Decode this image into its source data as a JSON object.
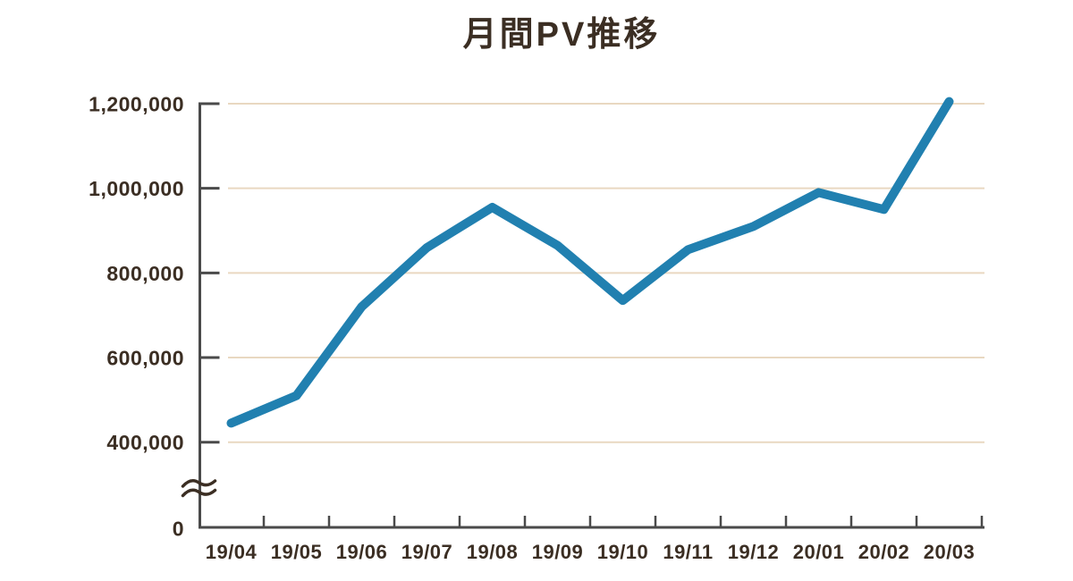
{
  "page": {
    "background": "#ffffff"
  },
  "chart_data": {
    "type": "line",
    "title": "月間PV推移",
    "categories": [
      "19/04",
      "19/05",
      "19/06",
      "19/07",
      "19/08",
      "19/09",
      "19/10",
      "19/11",
      "19/12",
      "20/01",
      "20/02",
      "20/03"
    ],
    "values": [
      445000,
      510000,
      720000,
      860000,
      955000,
      865000,
      735000,
      855000,
      910000,
      990000,
      950000,
      1205000
    ],
    "xlabel": "",
    "ylabel": "",
    "ylim": [
      0,
      1200000
    ],
    "y_ticks": [
      {
        "value": 0,
        "label": "0"
      },
      {
        "value": 400000,
        "label": "400,000"
      },
      {
        "value": 600000,
        "label": "600,000"
      },
      {
        "value": 800000,
        "label": "800,000"
      },
      {
        "value": 1000000,
        "label": "1,000,000"
      },
      {
        "value": 1200000,
        "label": "1,200,000"
      }
    ],
    "y_axis_break": {
      "between": [
        0,
        400000
      ],
      "symbol": "≈"
    },
    "grid": "horizontal",
    "legend": "none",
    "colors": {
      "line": "#2180b0",
      "grid": "#e9d8c1",
      "axis": "#4a4a4a",
      "text": "#3b2e23"
    }
  }
}
